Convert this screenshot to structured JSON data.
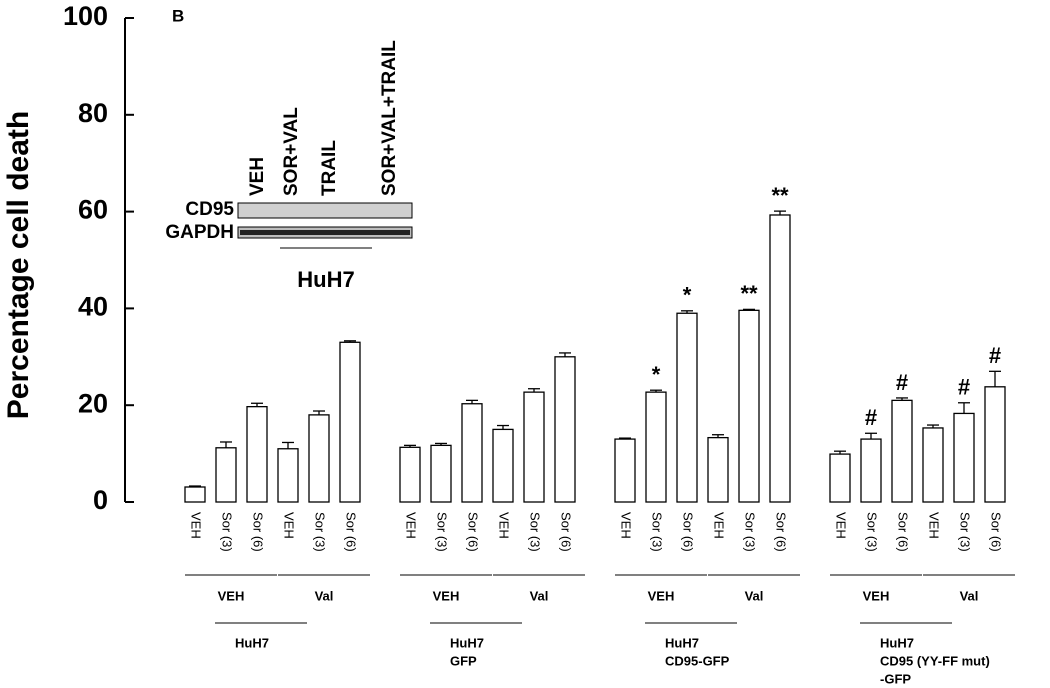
{
  "chart_data": {
    "type": "bar",
    "panel_label": "B",
    "y_label": "Percentage cell death",
    "ylim": [
      0,
      100
    ],
    "yticks": [
      0,
      20,
      40,
      60,
      80,
      100
    ],
    "color": "#ffffff",
    "categories": [
      "VEH",
      "Sor (3)",
      "Sor (6)",
      "VEH",
      "Sor (3)",
      "Sor (6)",
      "VEH",
      "Sor (3)",
      "Sor (6)",
      "VEH",
      "Sor (3)",
      "Sor (6)",
      "VEH",
      "Sor (3)",
      "Sor (6)",
      "VEH",
      "Sor (3)",
      "Sor (6)",
      "VEH",
      "Sor (3)",
      "Sor (6)",
      "VEH",
      "Sor (3)",
      "Sor (6)"
    ],
    "values": [
      3.1,
      11.2,
      19.7,
      11,
      18,
      33,
      11.3,
      11.7,
      20.3,
      15,
      22.7,
      30,
      13,
      22.7,
      39,
      13.3,
      39.6,
      59.3,
      9.9,
      13,
      21,
      15.3,
      18.3,
      23.8
    ],
    "errors": [
      0.2,
      1.2,
      0.7,
      1.3,
      0.8,
      0.3,
      0.4,
      0.4,
      0.7,
      0.8,
      0.7,
      0.8,
      0.2,
      0.4,
      0.5,
      0.6,
      0.2,
      0.8,
      0.6,
      1.2,
      0.5,
      0.6,
      2.2,
      3.2
    ],
    "annotations": [
      null,
      null,
      null,
      null,
      null,
      null,
      null,
      null,
      null,
      null,
      null,
      null,
      null,
      "*",
      "*",
      null,
      "**",
      "**",
      null,
      "#",
      "#",
      null,
      "#",
      "#"
    ],
    "subgroups": [
      "VEH",
      "Val",
      "VEH",
      "Val",
      "VEH",
      "Val",
      "VEH",
      "Val"
    ],
    "groups": [
      {
        "label": [
          "HuH7"
        ]
      },
      {
        "label": [
          "HuH7",
          "GFP"
        ]
      },
      {
        "label": [
          "HuH7",
          "CD95-GFP"
        ]
      },
      {
        "label": [
          "HuH7",
          "CD95 (YY-FF mut)",
          "-GFP"
        ]
      }
    ],
    "inset": {
      "lanes": [
        "VEH",
        "SOR+VAL",
        "TRAIL",
        "SOR+VAL+TRAIL"
      ],
      "rows": [
        "CD95",
        "GAPDH"
      ],
      "label": "HuH7"
    }
  }
}
